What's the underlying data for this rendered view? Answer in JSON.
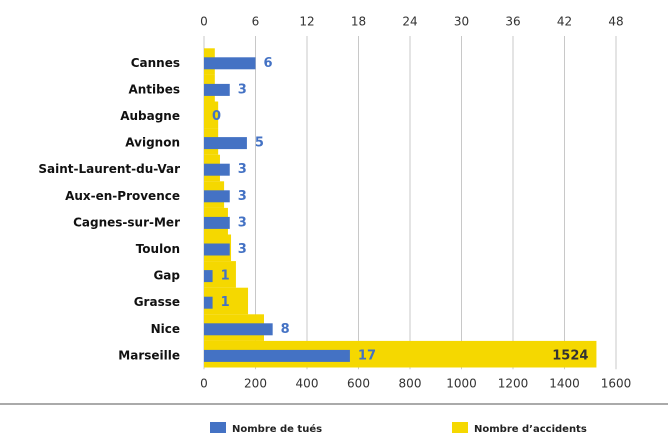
{
  "chart_data": {
    "type": "bar",
    "orientation": "horizontal",
    "categories": [
      "Cannes",
      "Antibes",
      "Aubagne",
      "Avignon",
      "Saint-Laurent-du-Var",
      "Aux-en-Provence",
      "Cagnes-sur-Mer",
      "Toulon",
      "Gap",
      "Grasse",
      "Nice",
      "Marseille"
    ],
    "series": [
      {
        "name": "Nombre d’accidents",
        "color": "#f5d800",
        "values": [
          42,
          42,
          55,
          55,
          62,
          78,
          93,
          105,
          124,
          171,
          233,
          1524
        ],
        "value_labels": [
          null,
          null,
          null,
          null,
          null,
          null,
          null,
          null,
          null,
          null,
          null,
          "1524"
        ]
      },
      {
        "name": "Nombre de tués",
        "color": "#4472c4",
        "axis": "x2",
        "values": [
          6,
          3,
          0,
          5,
          3,
          3,
          3,
          3,
          1,
          1,
          8,
          17
        ]
      }
    ],
    "xlim": [
      0,
      1600
    ],
    "xticks": [
      0,
      200,
      400,
      600,
      800,
      1000,
      1200,
      1400,
      1600
    ],
    "x2lim": [
      0,
      48
    ],
    "x2ticks": [
      0,
      6,
      12,
      18,
      24,
      30,
      36,
      42,
      48
    ],
    "grid": true,
    "legend": "bottom"
  }
}
